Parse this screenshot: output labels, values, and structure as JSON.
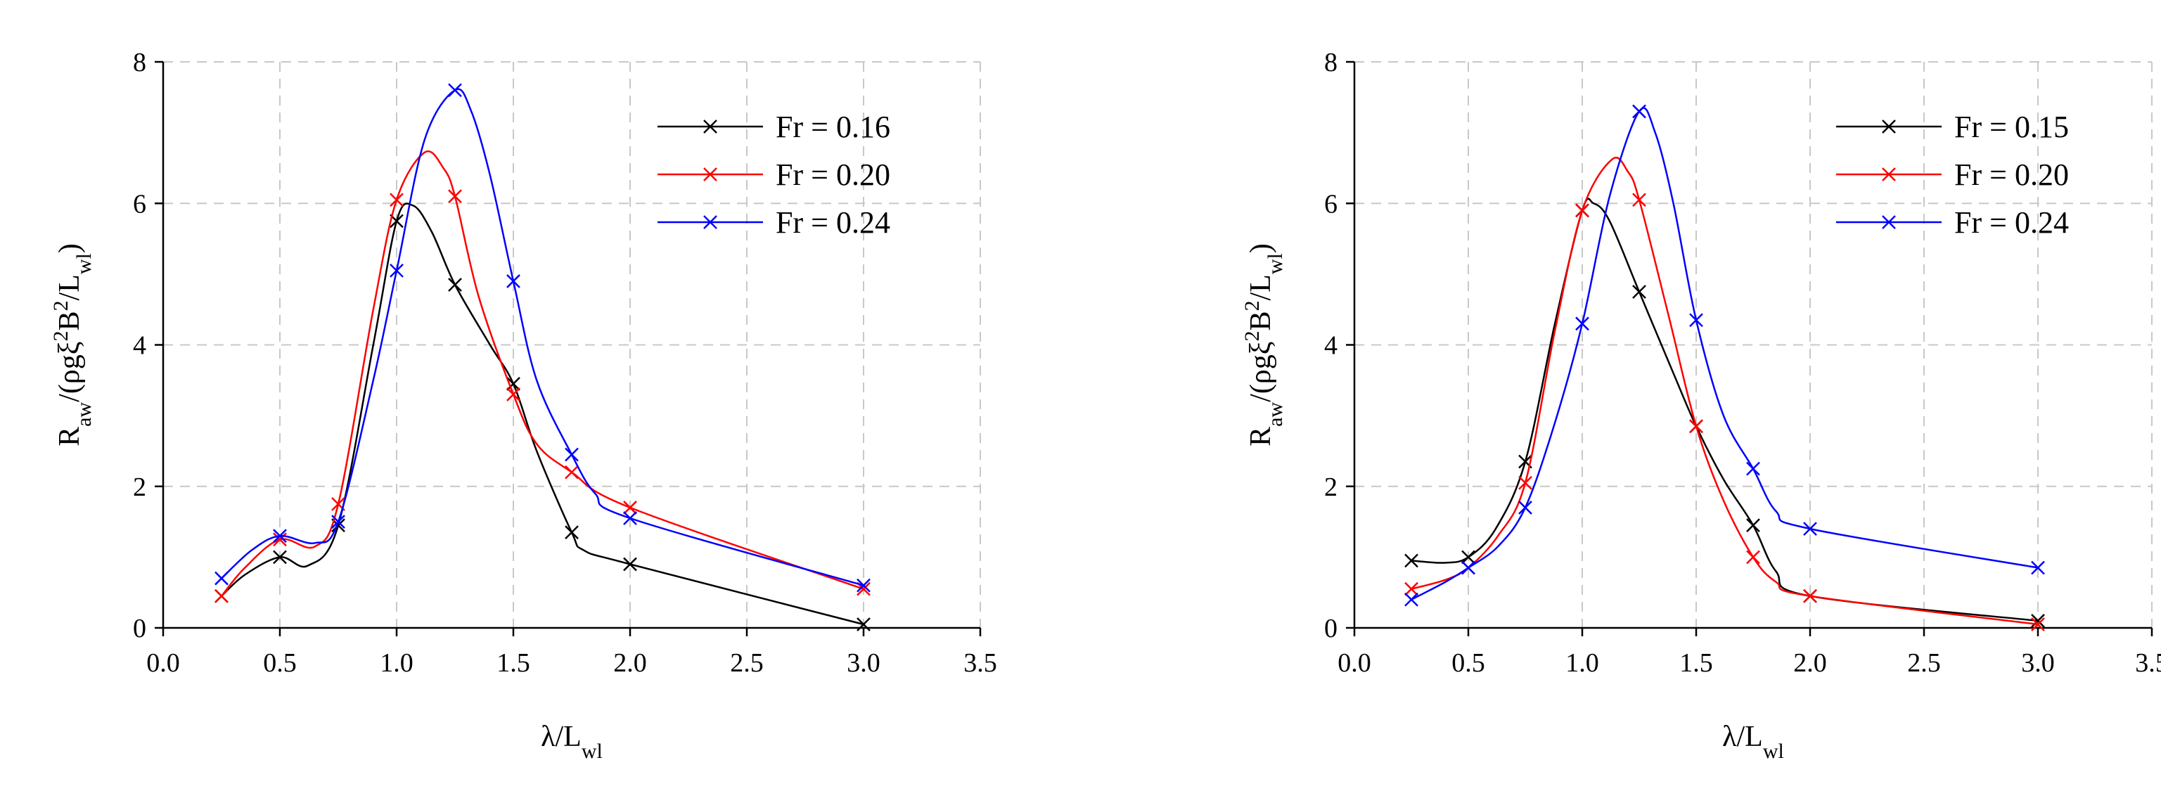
{
  "chart_data": [
    {
      "type": "line",
      "title": "",
      "xlabel": "λ/L",
      "xlabel_sub": "wl",
      "ylabel_parts": [
        "R",
        "aw",
        "/(ρgξ",
        "2",
        "B",
        "2",
        "/L",
        "wl",
        ")"
      ],
      "xlim": [
        0.0,
        3.5
      ],
      "ylim": [
        0,
        8
      ],
      "xticks": [
        "0.0",
        "0.5",
        "1.0",
        "1.5",
        "2.0",
        "2.5",
        "3.0",
        "3.5"
      ],
      "yticks": [
        "0",
        "2",
        "4",
        "6",
        "8"
      ],
      "grid": true,
      "legend_position": "top-right",
      "series": [
        {
          "name": "Fr = 0.16",
          "color": "#000000",
          "x": [
            0.25,
            0.5,
            0.75,
            1.0,
            1.25,
            1.5,
            1.75,
            2.0,
            3.0
          ],
          "y": [
            0.45,
            1.0,
            1.45,
            5.75,
            4.85,
            3.45,
            1.35,
            0.9,
            0.05
          ],
          "curve": [
            [
              0.25,
              0.45
            ],
            [
              0.35,
              0.75
            ],
            [
              0.5,
              1.0
            ],
            [
              0.62,
              0.88
            ],
            [
              0.75,
              1.45
            ],
            [
              0.9,
              4.0
            ],
            [
              1.0,
              5.75
            ],
            [
              1.07,
              5.97
            ],
            [
              1.15,
              5.6
            ],
            [
              1.25,
              4.85
            ],
            [
              1.4,
              4.0
            ],
            [
              1.5,
              3.45
            ],
            [
              1.6,
              2.5
            ],
            [
              1.75,
              1.35
            ],
            [
              1.8,
              1.1
            ],
            [
              2.0,
              0.9
            ],
            [
              3.0,
              0.05
            ]
          ]
        },
        {
          "name": "Fr = 0.20",
          "color": "#ff0000",
          "x": [
            0.25,
            0.5,
            0.75,
            1.0,
            1.25,
            1.5,
            1.75,
            2.0,
            3.0
          ],
          "y": [
            0.45,
            1.25,
            1.75,
            6.05,
            6.1,
            3.3,
            2.2,
            1.7,
            0.55
          ],
          "curve": [
            [
              0.25,
              0.45
            ],
            [
              0.35,
              0.85
            ],
            [
              0.5,
              1.25
            ],
            [
              0.65,
              1.15
            ],
            [
              0.75,
              1.75
            ],
            [
              0.9,
              4.5
            ],
            [
              1.0,
              6.05
            ],
            [
              1.12,
              6.72
            ],
            [
              1.2,
              6.5
            ],
            [
              1.25,
              6.1
            ],
            [
              1.35,
              4.7
            ],
            [
              1.5,
              3.3
            ],
            [
              1.6,
              2.6
            ],
            [
              1.75,
              2.2
            ],
            [
              2.0,
              1.7
            ],
            [
              3.0,
              0.55
            ]
          ]
        },
        {
          "name": "Fr = 0.24",
          "color": "#0000ff",
          "x": [
            0.25,
            0.5,
            0.75,
            1.0,
            1.25,
            1.5,
            1.75,
            2.0,
            3.0
          ],
          "y": [
            0.7,
            1.3,
            1.5,
            5.05,
            7.6,
            4.9,
            2.45,
            1.55,
            0.6
          ],
          "curve": [
            [
              0.25,
              0.7
            ],
            [
              0.38,
              1.1
            ],
            [
              0.5,
              1.3
            ],
            [
              0.65,
              1.2
            ],
            [
              0.75,
              1.5
            ],
            [
              0.9,
              3.5
            ],
            [
              1.0,
              5.05
            ],
            [
              1.12,
              6.9
            ],
            [
              1.25,
              7.6
            ],
            [
              1.32,
              7.3
            ],
            [
              1.4,
              6.4
            ],
            [
              1.5,
              4.9
            ],
            [
              1.6,
              3.5
            ],
            [
              1.75,
              2.45
            ],
            [
              1.85,
              1.9
            ],
            [
              2.0,
              1.55
            ],
            [
              3.0,
              0.6
            ]
          ]
        }
      ]
    },
    {
      "type": "line",
      "title": "",
      "xlabel": "λ/L",
      "xlabel_sub": "wl",
      "ylabel_parts": [
        "R",
        "aw",
        "/(ρgξ",
        "2",
        "B",
        "2",
        "/L",
        "wl",
        ")"
      ],
      "xlim": [
        0.0,
        3.5
      ],
      "ylim": [
        0,
        8
      ],
      "xticks": [
        "0.0",
        "0.5",
        "1.0",
        "1.5",
        "2.0",
        "2.5",
        "3.0",
        "3.5"
      ],
      "yticks": [
        "0",
        "2",
        "4",
        "6",
        "8"
      ],
      "grid": true,
      "legend_position": "top-right",
      "series": [
        {
          "name": "Fr = 0.15",
          "color": "#000000",
          "x": [
            0.25,
            0.5,
            0.75,
            1.0,
            1.25,
            1.5,
            1.75,
            2.0,
            3.0
          ],
          "y": [
            0.95,
            1.0,
            2.35,
            5.9,
            4.75,
            2.85,
            1.45,
            0.45,
            0.1
          ],
          "curve": [
            [
              0.25,
              0.95
            ],
            [
              0.4,
              0.92
            ],
            [
              0.5,
              1.0
            ],
            [
              0.62,
              1.4
            ],
            [
              0.75,
              2.35
            ],
            [
              0.88,
              4.3
            ],
            [
              1.0,
              5.9
            ],
            [
              1.05,
              6.0
            ],
            [
              1.12,
              5.75
            ],
            [
              1.25,
              4.75
            ],
            [
              1.4,
              3.6
            ],
            [
              1.5,
              2.85
            ],
            [
              1.62,
              2.1
            ],
            [
              1.75,
              1.45
            ],
            [
              1.85,
              0.8
            ],
            [
              2.0,
              0.45
            ],
            [
              3.0,
              0.1
            ]
          ]
        },
        {
          "name": "Fr = 0.20",
          "color": "#ff0000",
          "x": [
            0.25,
            0.5,
            0.75,
            1.0,
            1.25,
            1.5,
            1.75,
            2.0,
            3.0
          ],
          "y": [
            0.55,
            0.85,
            2.05,
            5.9,
            6.05,
            2.85,
            1.0,
            0.45,
            0.05
          ],
          "curve": [
            [
              0.25,
              0.55
            ],
            [
              0.4,
              0.68
            ],
            [
              0.5,
              0.85
            ],
            [
              0.63,
              1.3
            ],
            [
              0.75,
              2.05
            ],
            [
              0.88,
              4.2
            ],
            [
              1.0,
              5.9
            ],
            [
              1.13,
              6.62
            ],
            [
              1.2,
              6.45
            ],
            [
              1.25,
              6.05
            ],
            [
              1.38,
              4.4
            ],
            [
              1.5,
              2.85
            ],
            [
              1.62,
              1.8
            ],
            [
              1.75,
              1.0
            ],
            [
              1.85,
              0.65
            ],
            [
              2.0,
              0.45
            ],
            [
              3.0,
              0.05
            ]
          ]
        },
        {
          "name": "Fr = 0.24",
          "color": "#0000ff",
          "x": [
            0.25,
            0.5,
            0.75,
            1.0,
            1.25,
            1.5,
            1.75,
            2.0,
            3.0
          ],
          "y": [
            0.4,
            0.85,
            1.7,
            4.3,
            7.3,
            4.35,
            2.25,
            1.4,
            0.85
          ],
          "curve": [
            [
              0.25,
              0.4
            ],
            [
              0.4,
              0.65
            ],
            [
              0.5,
              0.85
            ],
            [
              0.63,
              1.15
            ],
            [
              0.75,
              1.7
            ],
            [
              0.88,
              2.9
            ],
            [
              1.0,
              4.3
            ],
            [
              1.12,
              6.1
            ],
            [
              1.25,
              7.3
            ],
            [
              1.32,
              7.0
            ],
            [
              1.4,
              6.0
            ],
            [
              1.5,
              4.35
            ],
            [
              1.62,
              3.0
            ],
            [
              1.75,
              2.25
            ],
            [
              1.85,
              1.65
            ],
            [
              2.0,
              1.4
            ],
            [
              3.0,
              0.85
            ]
          ]
        }
      ]
    }
  ]
}
